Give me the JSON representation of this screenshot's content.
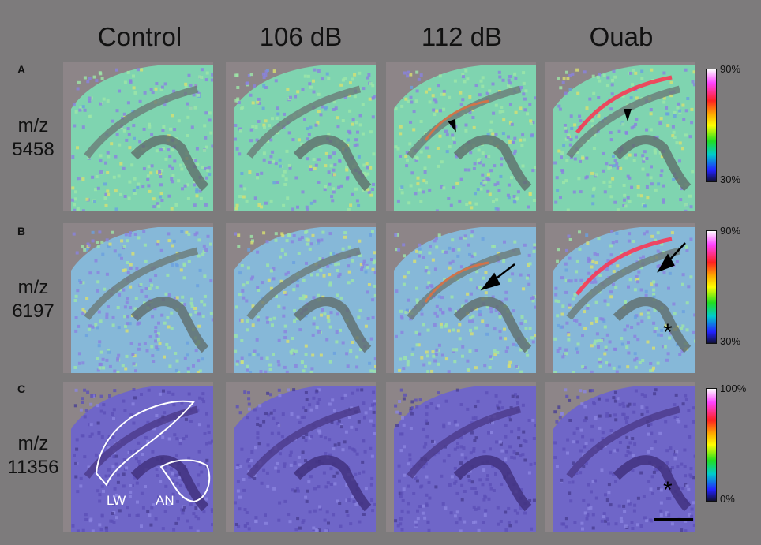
{
  "columns": [
    "Control",
    "106 dB",
    "112 dB",
    "Ouab"
  ],
  "rows": [
    {
      "letter": "A",
      "label_line1": "m/z",
      "label_line2": "5458"
    },
    {
      "letter": "B",
      "label_line1": "m/z",
      "label_line2": "6197"
    },
    {
      "letter": "C",
      "label_line1": "m/z",
      "label_line2": "11356"
    }
  ],
  "colorbars": [
    {
      "max": "90%",
      "min": "30%"
    },
    {
      "max": "90%",
      "min": "30%"
    },
    {
      "max": "100%",
      "min": "0%"
    }
  ],
  "annotations": {
    "lw": "LW",
    "an": "AN",
    "asterisk": "*"
  },
  "colors": {
    "background": "#7d7b7c",
    "tissue_green": "#8fd9a8",
    "tissue_blue": "#7c78d6",
    "tissue_purple": "#5b4aa8"
  }
}
